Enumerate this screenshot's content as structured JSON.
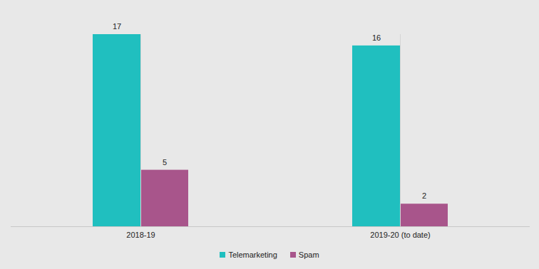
{
  "chart_data": {
    "type": "bar",
    "categories": [
      "2018-19",
      "2019-20 (to date)"
    ],
    "series": [
      {
        "name": "Telemarketing",
        "color": "#20bfbf",
        "values": [
          17,
          16
        ]
      },
      {
        "name": "Spam",
        "color": "#a8558b",
        "values": [
          5,
          2
        ]
      }
    ],
    "ylim": [
      0,
      17
    ],
    "data_labels": true,
    "tick_labels": "x",
    "legend": "bottom"
  }
}
